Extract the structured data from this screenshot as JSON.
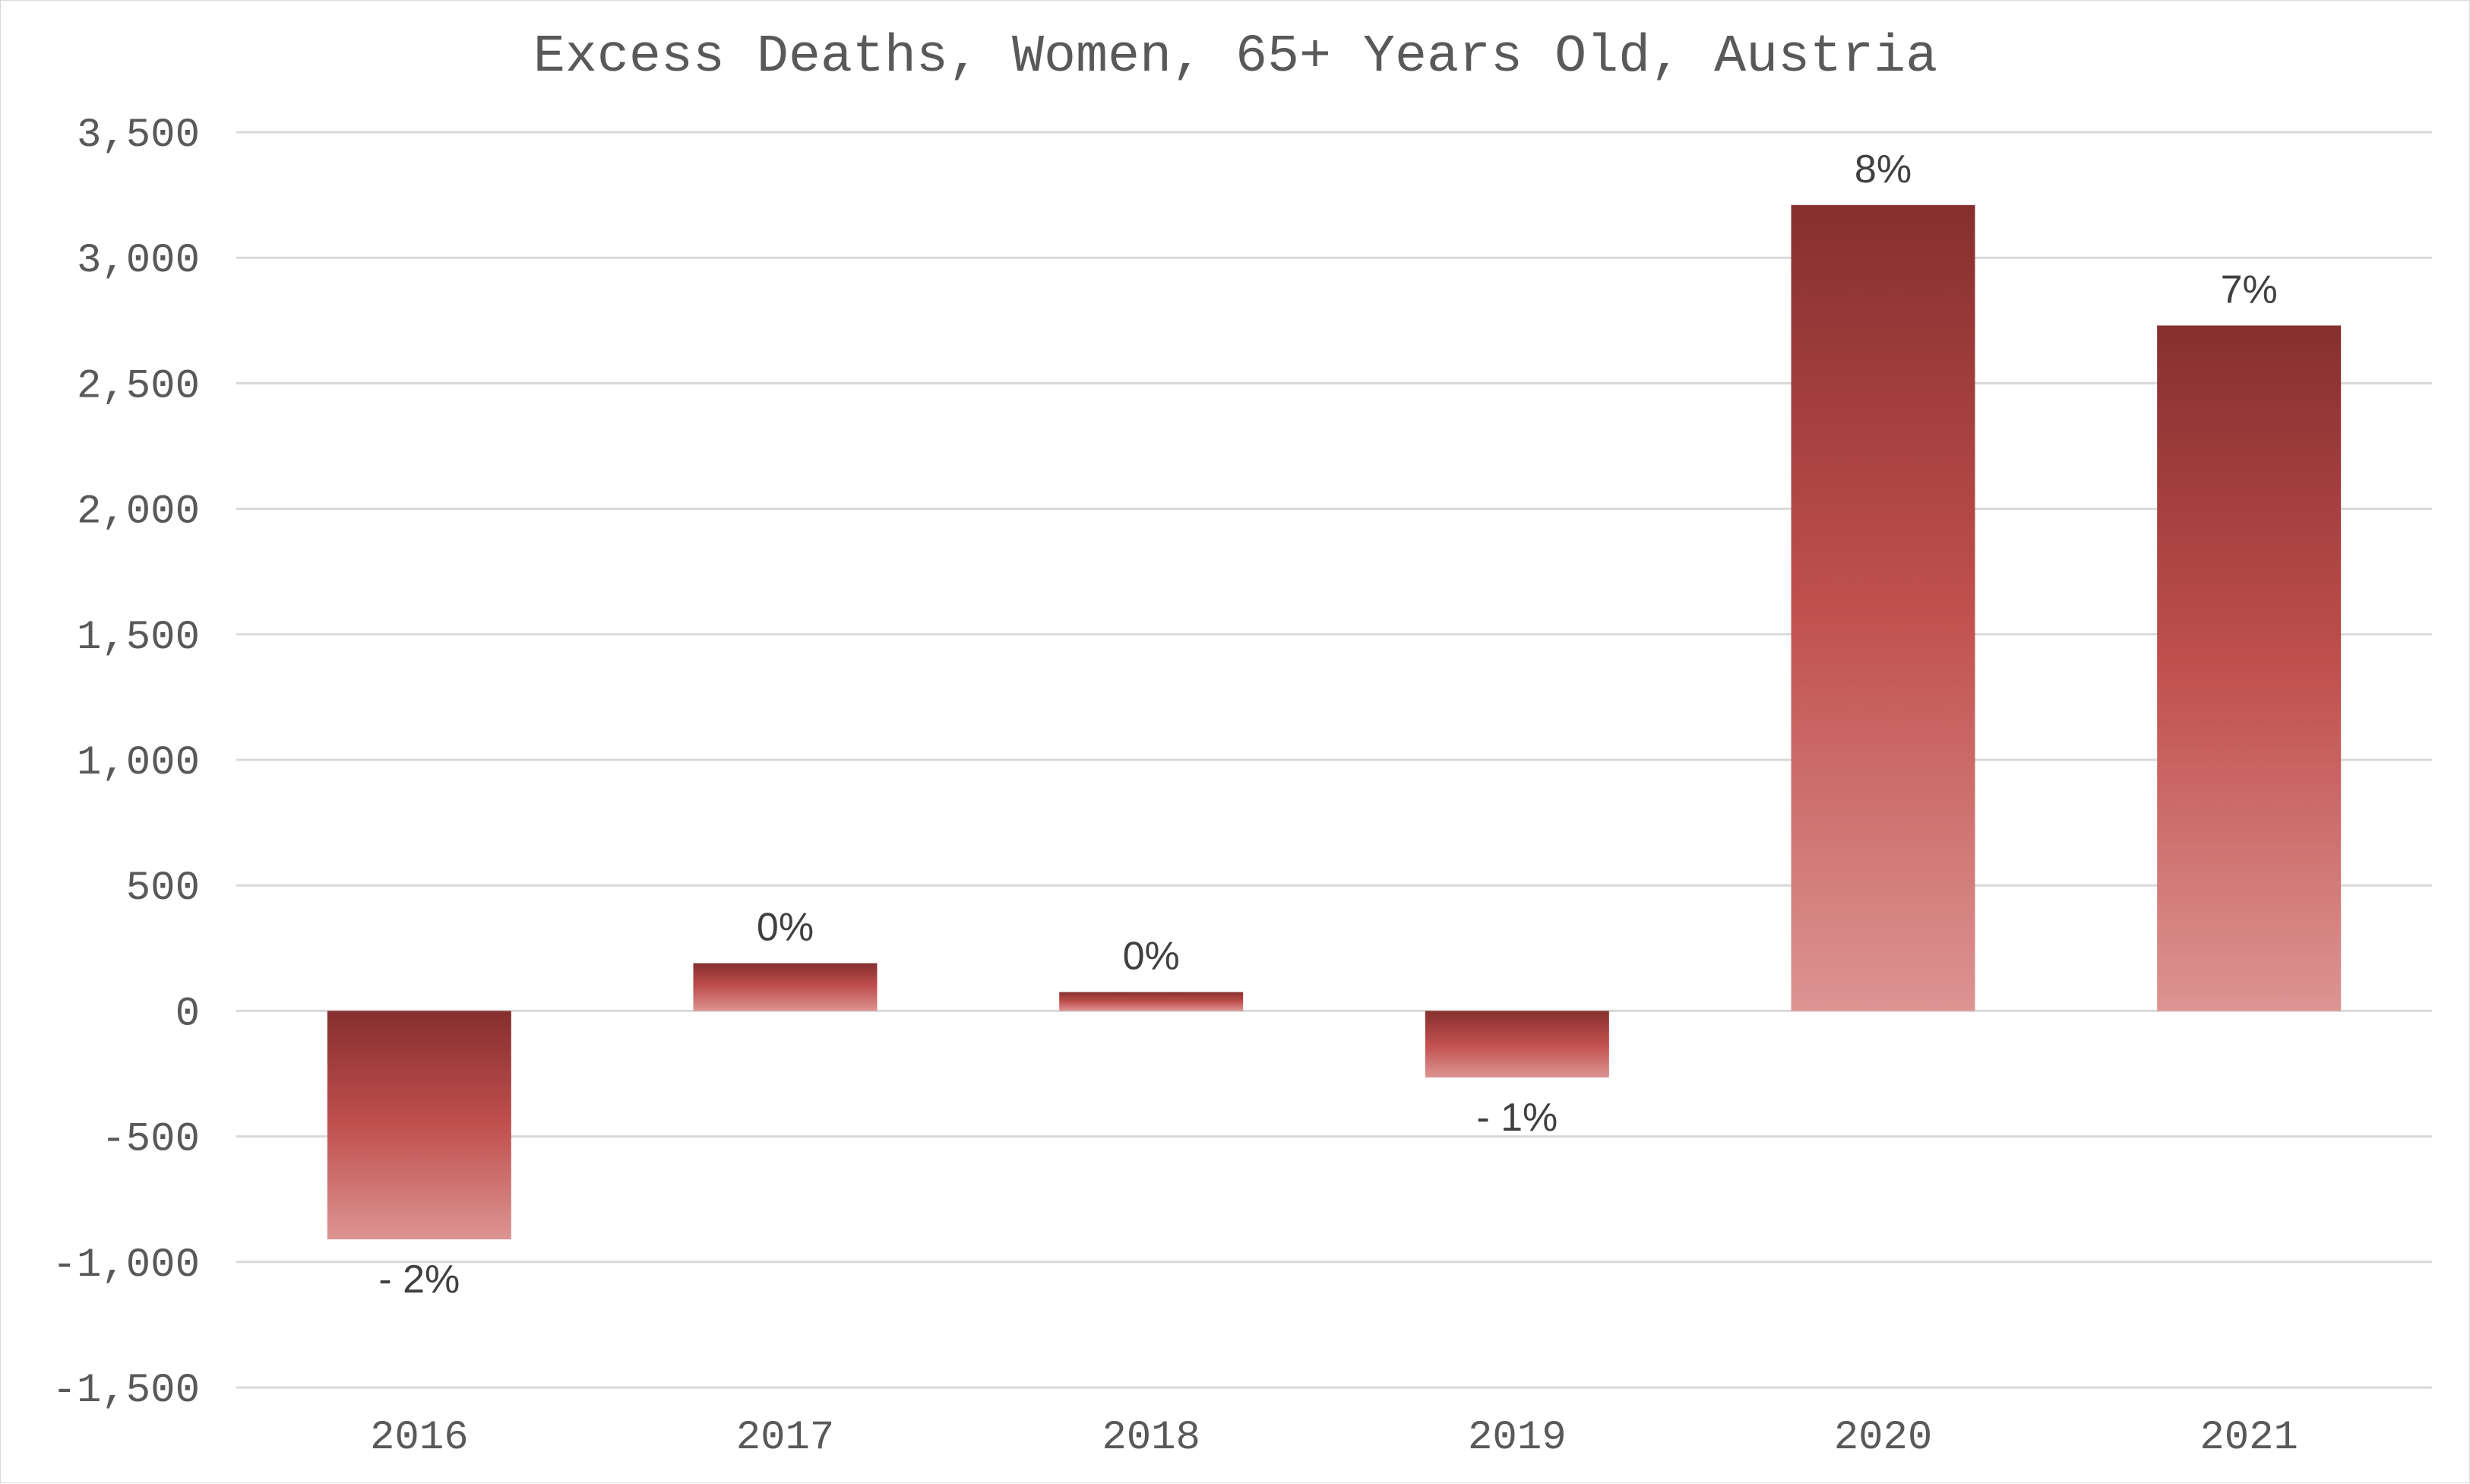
{
  "chart_data": {
    "type": "bar",
    "title": "Excess Deaths, Women, 65+ Years Old, Austria",
    "categories": [
      "2016",
      "2017",
      "2018",
      "2019",
      "2020",
      "2021"
    ],
    "values": [
      -910,
      190,
      75,
      -265,
      3210,
      2730
    ],
    "data_labels": [
      "- 2%",
      "0%",
      "0%",
      "- 1%",
      "8%",
      "7%"
    ],
    "ylim": [
      -1500,
      3500
    ],
    "yticks": [
      -1500,
      -1000,
      -500,
      0,
      500,
      1000,
      1500,
      2000,
      2500,
      3000,
      3500
    ],
    "ytick_labels": [
      "-1,500",
      "-1,000",
      "-500",
      "0",
      "500",
      "1,000",
      "1,500",
      "2,000",
      "2,500",
      "3,000",
      "3,500"
    ],
    "grid": true,
    "legend": "none",
    "colors": {
      "bar_dark": "#862f2f",
      "bar_mid": "#c0504d",
      "bar_light": "#dc9492",
      "grid": "#d9d9d9",
      "text": "#595959"
    }
  }
}
